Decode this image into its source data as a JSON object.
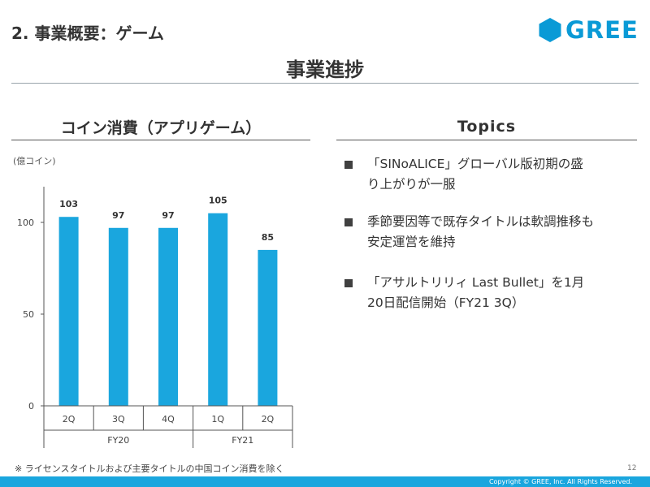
{
  "header": {
    "section_title": "2. 事業概要：ゲーム",
    "logo_text": "GREE",
    "main_title": "事業進捗"
  },
  "colors": {
    "accent": "#0a9ad6",
    "bar": "#1aa6de",
    "footer": "#1aa6de"
  },
  "chart_data": {
    "type": "bar",
    "title": "コイン消費（アプリゲーム）",
    "ylabel": "(億コイン)",
    "categories": [
      "2Q",
      "3Q",
      "4Q",
      "1Q",
      "2Q"
    ],
    "groups": [
      {
        "label": "FY20",
        "count": 3
      },
      {
        "label": "FY21",
        "count": 2
      }
    ],
    "values": [
      103,
      97,
      97,
      105,
      85
    ],
    "data_labels": [
      "103",
      "97",
      "97",
      "105",
      "85"
    ],
    "yticks": [
      0,
      50,
      100
    ],
    "ytick_labels": [
      "0",
      "50",
      "100"
    ],
    "ylim": [
      0,
      120
    ],
    "grid": false,
    "legend": "none"
  },
  "topics": {
    "heading": "Topics",
    "items": [
      {
        "line1": "「SINoALICE」グローバル版初期の盛",
        "line2": "り上がりが一服"
      },
      {
        "line1": "季節要因等で既存タイトルは軟調推移も",
        "line2": "安定運営を維持"
      },
      {
        "line1": "「アサルトリリィ Last Bullet」を1月",
        "line2": "20日配信開始（FY21 3Q）"
      }
    ]
  },
  "footer": {
    "footnote": "※ ライセンスタイトルおよび主要タイトルの中国コイン消費を除く",
    "page_number": "12",
    "copyright": "Copyright © GREE, Inc. All Rights Reserved."
  }
}
